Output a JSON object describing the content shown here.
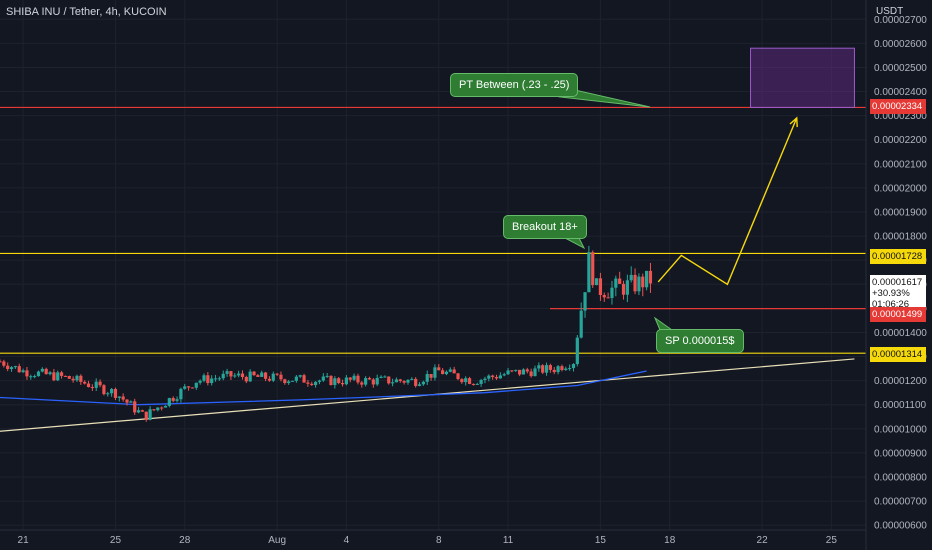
{
  "header": {
    "title": "SHIBA INU / Tether, 4h, KUCOIN"
  },
  "axis_unit": "USDT",
  "colors": {
    "background": "#131722",
    "up": "#26a69a",
    "down": "#ef5350",
    "red_line": "#e53935",
    "yellow_line": "#f5d90a",
    "ma_line": "#2962ff",
    "trend_line": "#e9e0b8",
    "box": "#6a2c91"
  },
  "annotations": {
    "pt_label": "PT Between  (.23 - .25)",
    "breakout_label": "Breakout 18+",
    "sp_label": "SP 0.000015$"
  },
  "price_tags": {
    "target": "0.00002334",
    "resistance": "0.00001728",
    "current_price": "0.00001617",
    "current_change": "+30.93%",
    "current_timer": "01:06:26",
    "stop": "0.00001499",
    "support": "0.00001314"
  },
  "chart_data": {
    "type": "candlestick",
    "title": "SHIBA INU / Tether, 4h, KUCOIN",
    "ylabel": "USDT",
    "ylim": [
      5.8e-06,
      2.78e-05
    ],
    "xlim": [
      "2021-07-20T00:00",
      "2021-08-26T12:00"
    ],
    "x_tick_labels": [
      {
        "label": "21",
        "date": "2021-07-21"
      },
      {
        "label": "25",
        "date": "2021-07-25"
      },
      {
        "label": "28",
        "date": "2021-07-28"
      },
      {
        "label": "Aug",
        "date": "2021-08-01"
      },
      {
        "label": "4",
        "date": "2021-08-04"
      },
      {
        "label": "8",
        "date": "2021-08-08"
      },
      {
        "label": "11",
        "date": "2021-08-11"
      },
      {
        "label": "15",
        "date": "2021-08-15"
      },
      {
        "label": "18",
        "date": "2021-08-18"
      },
      {
        "label": "22",
        "date": "2021-08-22"
      },
      {
        "label": "25",
        "date": "2021-08-25"
      }
    ],
    "y_tick_labels": [
      "0.00000600",
      "0.00000700",
      "0.00000800",
      "0.00000900",
      "0.00001000",
      "0.00001100",
      "0.00001200",
      "0.00001300",
      "0.00001400",
      "0.00001500",
      "0.00001600",
      "0.00001700",
      "0.00001800",
      "0.00001900",
      "0.00002000",
      "0.00002100",
      "0.00002200",
      "0.00002300",
      "0.00002400",
      "0.00002500",
      "0.00002600",
      "0.00002700"
    ],
    "horizontal_levels": [
      {
        "value": 2.334e-05,
        "color": "red"
      },
      {
        "value": 1.728e-05,
        "color": "yellow"
      },
      {
        "value": 1.499e-05,
        "color": "red"
      },
      {
        "value": 1.314e-05,
        "color": "yellow"
      }
    ],
    "target_box": {
      "y_low": 2.334e-05,
      "y_high": 2.58e-05,
      "x_start": "2021-08-21T12:00",
      "x_end": "2021-08-26T00:00"
    },
    "trend_line": [
      [
        "2021-07-20T00:00",
        9.9e-06
      ],
      [
        "2021-08-26T00:00",
        1.29e-05
      ]
    ],
    "moving_average": [
      [
        "2021-07-20T00:00",
        1.13e-05
      ],
      [
        "2021-07-26T00:00",
        1.1e-05
      ],
      [
        "2021-08-02T00:00",
        1.12e-05
      ],
      [
        "2021-08-10T00:00",
        1.15e-05
      ],
      [
        "2021-08-14T00:00",
        1.18e-05
      ],
      [
        "2021-08-17T00:00",
        1.24e-05
      ]
    ],
    "projection_path": [
      [
        "2021-08-17T12:00",
        1.61e-05
      ],
      [
        "2021-08-18T12:00",
        1.72e-05
      ],
      [
        "2021-08-20T12:00",
        1.6e-05
      ],
      [
        "2021-08-23T12:00",
        2.29e-05
      ]
    ],
    "candles_segments": [
      [
        "2021-07-20T00:00",
        1.28e-05
      ],
      [
        "2021-07-21T00:00",
        1.24e-05
      ],
      [
        "2021-07-23T00:00",
        1.21e-05
      ],
      [
        "2021-07-25T00:00",
        1.15e-05
      ],
      [
        "2021-07-26T06:00",
        1.05e-05
      ],
      [
        "2021-07-27T00:00",
        1.1e-05
      ],
      [
        "2021-07-28T12:00",
        1.2e-05
      ],
      [
        "2021-07-30T00:00",
        1.22e-05
      ],
      [
        "2021-08-01T00:00",
        1.21e-05
      ],
      [
        "2021-08-03T00:00",
        1.2e-05
      ],
      [
        "2021-08-05T00:00",
        1.2e-05
      ],
      [
        "2021-08-07T00:00",
        1.2e-05
      ],
      [
        "2021-08-08T00:00",
        1.24e-05
      ],
      [
        "2021-08-09T12:00",
        1.2e-05
      ],
      [
        "2021-08-11T00:00",
        1.23e-05
      ],
      [
        "2021-08-13T00:00",
        1.25e-05
      ],
      [
        "2021-08-13T20:00",
        1.28e-05
      ],
      [
        "2021-08-14T04:00",
        1.5e-05
      ],
      [
        "2021-08-14T12:00",
        1.7e-05
      ],
      [
        "2021-08-14T20:00",
        1.58e-05
      ],
      [
        "2021-08-15T12:00",
        1.58e-05
      ],
      [
        "2021-08-16T12:00",
        1.6e-05
      ],
      [
        "2021-08-17T04:00",
        1.62e-05
      ]
    ]
  }
}
